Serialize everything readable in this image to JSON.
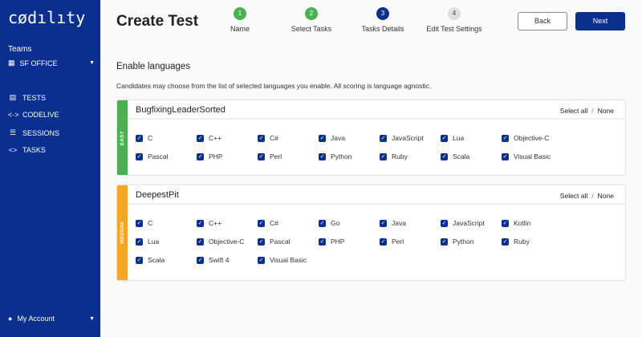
{
  "sidebar": {
    "logo": "cødılıty",
    "teams_label": "Teams",
    "team": "SF OFFICE",
    "nav": [
      {
        "icon": "clipboard-icon",
        "glyph": "▤",
        "label": "TESTS"
      },
      {
        "icon": "code-live-icon",
        "glyph": "<·>",
        "label": "CODELIVE"
      },
      {
        "icon": "list-icon",
        "glyph": "☰",
        "label": "SESSIONS"
      },
      {
        "icon": "code-icon",
        "glyph": "<>",
        "label": "TASKS"
      }
    ],
    "account": "My Account"
  },
  "header": {
    "title": "Create Test",
    "back": "Back",
    "next": "Next",
    "steps": [
      {
        "num": "1",
        "label": "Name",
        "state": "done"
      },
      {
        "num": "2",
        "label": "Select Tasks",
        "state": "done"
      },
      {
        "num": "3",
        "label": "Tasks Details",
        "state": "active"
      },
      {
        "num": "4",
        "label": "Edit Test Settings",
        "state": "pending"
      }
    ]
  },
  "main": {
    "heading": "Enable languages",
    "description": "Candidates may choose from the list of selected languages you enable. All scoring is language agnostic.",
    "select_all": "Select all",
    "none": "None",
    "tasks": [
      {
        "name": "BugfixingLeaderSorted",
        "difficulty": "EASY",
        "color": "#4caf50",
        "languages": [
          "C",
          "C++",
          "C#",
          "Java",
          "JavaScript",
          "Lua",
          "Objective-C",
          "Pascal",
          "PHP",
          "Perl",
          "Python",
          "Ruby",
          "Scala",
          "Visual Basic"
        ]
      },
      {
        "name": "DeepestPit",
        "difficulty": "MEDIUM",
        "color": "#f5a623",
        "languages": [
          "C",
          "C++",
          "C#",
          "Go",
          "Java",
          "JavaScript",
          "Kotlin",
          "Lua",
          "Objective-C",
          "Pascal",
          "PHP",
          "Perl",
          "Python",
          "Ruby",
          "Scala",
          "Swift 4",
          "Visual Basic"
        ]
      }
    ]
  },
  "colors": {
    "brand": "#0b2f8f",
    "done": "#4caf50",
    "pending": "#e0e0e0"
  }
}
